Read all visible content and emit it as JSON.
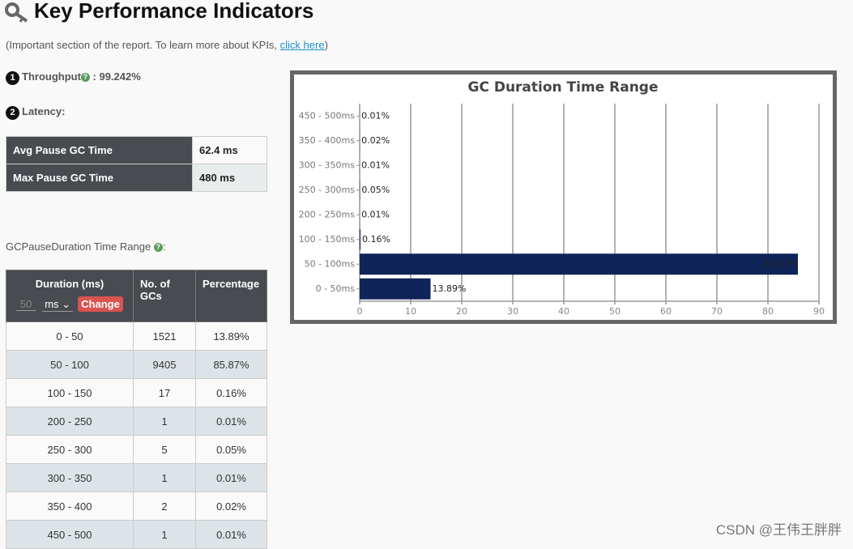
{
  "header": {
    "title": "Key Performance Indicators",
    "note_prefix": "(Important section of the report. To learn more about KPIs, ",
    "note_link": "click here",
    "note_suffix": ")"
  },
  "throughput": {
    "marker": "1",
    "label": "Throughput",
    "value": " : 99.242%"
  },
  "latency": {
    "marker": "2",
    "label": "Latency:",
    "rows": [
      [
        "Avg Pause GC Time",
        "62.4 ms"
      ],
      [
        "Max Pause GC Time",
        "480 ms"
      ]
    ]
  },
  "range_title": {
    "label": "GCPauseDuration Time Range",
    "suffix": ":"
  },
  "table": {
    "headers": [
      "Duration (ms)",
      "No. of GCs",
      "Percentage"
    ],
    "controls": {
      "input": "50",
      "unit": "ms",
      "button": "Change"
    },
    "rows": [
      [
        "0 - 50",
        "1521",
        "13.89%"
      ],
      [
        "50 - 100",
        "9405",
        "85.87%"
      ],
      [
        "100 - 150",
        "17",
        "0.16%"
      ],
      [
        "200 - 250",
        "1",
        "0.01%"
      ],
      [
        "250 - 300",
        "5",
        "0.05%"
      ],
      [
        "300 - 350",
        "1",
        "0.01%"
      ],
      [
        "350 - 400",
        "2",
        "0.02%"
      ],
      [
        "450 - 500",
        "1",
        "0.01%"
      ]
    ]
  },
  "chart_data": {
    "type": "bar",
    "orientation": "horizontal",
    "title": "GC Duration Time Range",
    "categories": [
      "450 - 500ms",
      "350 - 400ms",
      "300 - 350ms",
      "250 - 300ms",
      "200 - 250ms",
      "100 - 150ms",
      "50 - 100ms",
      "0 - 50ms"
    ],
    "values": [
      0.01,
      0.02,
      0.01,
      0.05,
      0.01,
      0.16,
      85.87,
      13.89
    ],
    "value_labels": [
      "0.01%",
      "0.02%",
      "0.01%",
      "0.05%",
      "0.01%",
      "0.16%",
      "85.87%",
      "13.89%"
    ],
    "color": "#0f2458",
    "xlim": [
      0,
      90
    ],
    "xticks": [
      0,
      10,
      20,
      30,
      40,
      50,
      60,
      70,
      80,
      90
    ],
    "grid": true
  },
  "watermark": "CSDN @王伟王胖胖"
}
